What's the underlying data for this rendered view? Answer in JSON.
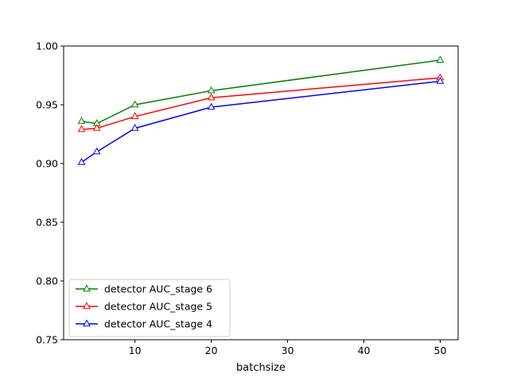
{
  "chart_data": {
    "type": "line",
    "title": "",
    "xlabel": "batchsize",
    "ylabel": "",
    "xlim": [
      0.65,
      52.35
    ],
    "ylim": [
      0.75,
      1.0
    ],
    "xticks": [
      10,
      20,
      30,
      40,
      50
    ],
    "xtick_labels": [
      "10",
      "20",
      "30",
      "40",
      "50"
    ],
    "yticks": [
      0.75,
      0.8,
      0.85,
      0.9,
      0.95,
      1.0
    ],
    "ytick_labels": [
      "0.75",
      "0.80",
      "0.85",
      "0.90",
      "0.95",
      "1.00"
    ],
    "grid": false,
    "legend_position": "lower-left",
    "marker": "hollow-triangle",
    "x": [
      3,
      5,
      10,
      20,
      50
    ],
    "series": [
      {
        "name": "detector AUC_stage 6",
        "color": "#008000",
        "values": [
          0.936,
          0.934,
          0.95,
          0.962,
          0.988
        ]
      },
      {
        "name": "detector AUC_stage 5",
        "color": "#ff0000",
        "values": [
          0.929,
          0.93,
          0.94,
          0.956,
          0.973
        ]
      },
      {
        "name": "detector AUC_stage 4",
        "color": "#0000ff",
        "values": [
          0.901,
          0.91,
          0.93,
          0.948,
          0.97
        ]
      }
    ]
  }
}
